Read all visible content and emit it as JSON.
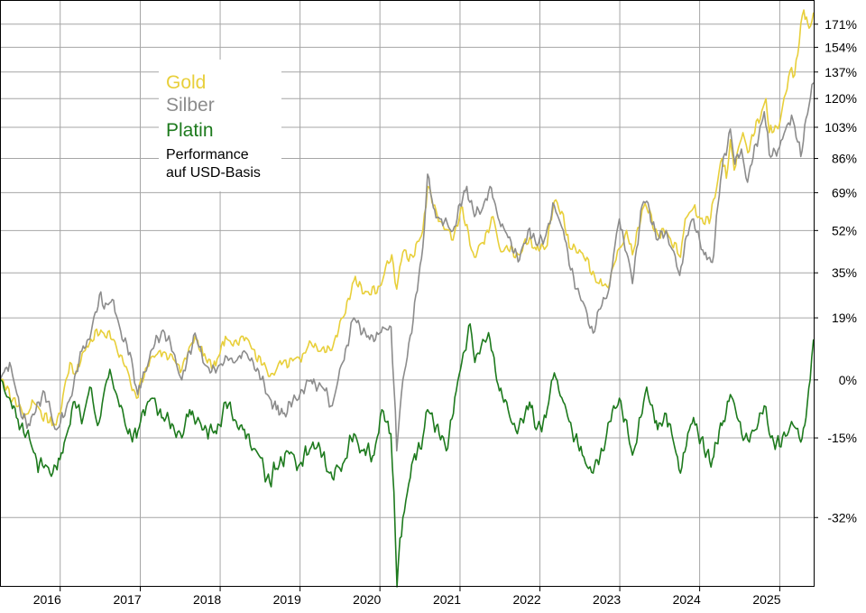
{
  "chart_data": {
    "type": "line",
    "title": "",
    "xlabel": "",
    "ylabel": "",
    "x_scale": "time",
    "y_scale": "log",
    "x_range": [
      "2015-04-01",
      "2025-06-05"
    ],
    "ylim": [
      -44,
      190
    ],
    "grid": true,
    "legend_position": "top-left",
    "x_ticks": [
      "2016",
      "2017",
      "2018",
      "2019",
      "2020",
      "2021",
      "2022",
      "2023",
      "2024",
      "2025"
    ],
    "y_ticks": [
      171,
      154,
      137,
      120,
      103,
      86,
      69,
      52,
      35,
      19,
      0,
      -15,
      -32
    ],
    "y_tick_labels": [
      "171%",
      "154%",
      "137%",
      "120%",
      "103%",
      "86%",
      "69%",
      "52%",
      "35%",
      "19%",
      "0%",
      "-15%",
      "-32%"
    ],
    "note": [
      "Performance",
      "auf USD-Basis"
    ],
    "series": [
      {
        "name": "Gold",
        "color": "#e8cf3a",
        "points": [
          [
            "2015-04-01",
            0
          ],
          [
            "2015-06-01",
            -5
          ],
          [
            "2015-07-20",
            -10
          ],
          [
            "2015-09-01",
            -6
          ],
          [
            "2015-11-25",
            -12
          ],
          [
            "2016-01-01",
            -9
          ],
          [
            "2016-02-15",
            5
          ],
          [
            "2016-03-15",
            2
          ],
          [
            "2016-05-01",
            10
          ],
          [
            "2016-07-05",
            15
          ],
          [
            "2016-09-01",
            12
          ],
          [
            "2016-10-15",
            5
          ],
          [
            "2016-12-15",
            -5
          ],
          [
            "2017-02-15",
            6
          ],
          [
            "2017-04-15",
            8
          ],
          [
            "2017-06-01",
            6
          ],
          [
            "2017-07-10",
            3
          ],
          [
            "2017-09-08",
            13
          ],
          [
            "2017-10-15",
            7
          ],
          [
            "2017-12-12",
            4
          ],
          [
            "2018-01-25",
            13
          ],
          [
            "2018-03-01",
            10
          ],
          [
            "2018-04-15",
            13
          ],
          [
            "2018-06-01",
            9
          ],
          [
            "2018-08-16",
            1
          ],
          [
            "2018-10-15",
            5
          ],
          [
            "2018-12-31",
            6
          ],
          [
            "2019-02-20",
            11
          ],
          [
            "2019-04-25",
            8
          ],
          [
            "2019-06-01",
            10
          ],
          [
            "2019-07-15",
            19
          ],
          [
            "2019-09-04",
            32
          ],
          [
            "2019-11-15",
            27
          ],
          [
            "2019-12-31",
            30
          ],
          [
            "2020-02-24",
            42
          ],
          [
            "2020-03-18",
            29
          ],
          [
            "2020-04-15",
            43
          ],
          [
            "2020-06-01",
            41
          ],
          [
            "2020-07-15",
            52
          ],
          [
            "2020-08-06",
            72
          ],
          [
            "2020-09-01",
            63
          ],
          [
            "2020-10-01",
            56
          ],
          [
            "2020-11-30",
            48
          ],
          [
            "2021-01-05",
            62
          ],
          [
            "2021-03-08",
            41
          ],
          [
            "2021-04-15",
            47
          ],
          [
            "2021-06-01",
            58
          ],
          [
            "2021-06-30",
            45
          ],
          [
            "2021-08-09",
            44
          ],
          [
            "2021-09-30",
            42
          ],
          [
            "2021-11-15",
            49
          ],
          [
            "2021-12-15",
            44
          ],
          [
            "2022-01-28",
            45
          ],
          [
            "2022-03-08",
            65
          ],
          [
            "2022-04-18",
            59
          ],
          [
            "2022-05-15",
            45
          ],
          [
            "2022-07-01",
            44
          ],
          [
            "2022-09-28",
            31
          ],
          [
            "2022-11-03",
            30
          ],
          [
            "2022-12-15",
            40
          ],
          [
            "2023-02-01",
            52
          ],
          [
            "2023-02-28",
            42
          ],
          [
            "2023-04-13",
            61
          ],
          [
            "2023-05-04",
            62
          ],
          [
            "2023-06-29",
            49
          ],
          [
            "2023-08-01",
            52
          ],
          [
            "2023-10-05",
            41
          ],
          [
            "2023-10-27",
            57
          ],
          [
            "2023-12-04",
            62
          ],
          [
            "2023-12-29",
            58
          ],
          [
            "2024-02-14",
            55
          ],
          [
            "2024-04-12",
            86
          ],
          [
            "2024-05-02",
            76
          ],
          [
            "2024-05-20",
            96
          ],
          [
            "2024-06-07",
            80
          ],
          [
            "2024-07-17",
            100
          ],
          [
            "2024-08-08",
            89
          ],
          [
            "2024-10-30",
            120
          ],
          [
            "2024-11-14",
            100
          ],
          [
            "2024-12-31",
            105
          ],
          [
            "2025-02-24",
            140
          ],
          [
            "2025-03-10",
            135
          ],
          [
            "2025-04-21",
            182
          ],
          [
            "2025-05-15",
            168
          ],
          [
            "2025-06-04",
            180
          ]
        ]
      },
      {
        "name": "Silber",
        "color": "#8c8c8c",
        "points": [
          [
            "2015-04-01",
            0
          ],
          [
            "2015-05-15",
            5
          ],
          [
            "2015-07-01",
            -8
          ],
          [
            "2015-08-15",
            -12
          ],
          [
            "2015-10-15",
            -3
          ],
          [
            "2015-12-15",
            -13
          ],
          [
            "2016-01-15",
            -10
          ],
          [
            "2016-03-01",
            -2
          ],
          [
            "2016-04-15",
            10
          ],
          [
            "2016-05-15",
            12
          ],
          [
            "2016-07-05",
            28
          ],
          [
            "2016-07-20",
            22
          ],
          [
            "2016-09-01",
            25
          ],
          [
            "2016-10-10",
            12
          ],
          [
            "2016-11-15",
            8
          ],
          [
            "2016-12-20",
            -4
          ],
          [
            "2017-02-24",
            9
          ],
          [
            "2017-04-15",
            15
          ],
          [
            "2017-06-01",
            8
          ],
          [
            "2017-07-10",
            0
          ],
          [
            "2017-08-01",
            5
          ],
          [
            "2017-09-08",
            14
          ],
          [
            "2017-10-15",
            5
          ],
          [
            "2017-12-12",
            2
          ],
          [
            "2018-01-25",
            7
          ],
          [
            "2018-03-01",
            5
          ],
          [
            "2018-04-13",
            8
          ],
          [
            "2018-06-01",
            5
          ],
          [
            "2018-08-16",
            -5
          ],
          [
            "2018-09-15",
            -8
          ],
          [
            "2018-10-15",
            -9
          ],
          [
            "2018-12-31",
            -4
          ],
          [
            "2019-02-20",
            0
          ],
          [
            "2019-04-25",
            -3
          ],
          [
            "2019-05-28",
            -7
          ],
          [
            "2019-07-15",
            5
          ],
          [
            "2019-09-04",
            19
          ],
          [
            "2019-11-15",
            12
          ],
          [
            "2019-12-31",
            14
          ],
          [
            "2020-02-21",
            16
          ],
          [
            "2020-03-18",
            -18
          ],
          [
            "2020-04-15",
            0
          ],
          [
            "2020-06-01",
            18
          ],
          [
            "2020-07-15",
            45
          ],
          [
            "2020-08-06",
            78
          ],
          [
            "2020-09-01",
            62
          ],
          [
            "2020-10-01",
            57
          ],
          [
            "2020-11-30",
            52
          ],
          [
            "2021-02-01",
            72
          ],
          [
            "2021-03-08",
            58
          ],
          [
            "2021-04-15",
            62
          ],
          [
            "2021-05-18",
            72
          ],
          [
            "2021-06-30",
            56
          ],
          [
            "2021-08-09",
            49
          ],
          [
            "2021-09-30",
            40
          ],
          [
            "2021-11-15",
            53
          ],
          [
            "2021-12-15",
            46
          ],
          [
            "2022-01-28",
            50
          ],
          [
            "2022-03-08",
            63
          ],
          [
            "2022-04-18",
            52
          ],
          [
            "2022-05-15",
            38
          ],
          [
            "2022-07-01",
            27
          ],
          [
            "2022-09-01",
            14
          ],
          [
            "2022-10-04",
            22
          ],
          [
            "2022-11-15",
            30
          ],
          [
            "2022-12-30",
            57
          ],
          [
            "2023-02-28",
            31
          ],
          [
            "2023-04-13",
            63
          ],
          [
            "2023-05-04",
            65
          ],
          [
            "2023-06-23",
            48
          ],
          [
            "2023-08-01",
            52
          ],
          [
            "2023-10-02",
            34
          ],
          [
            "2023-10-27",
            48
          ],
          [
            "2023-12-04",
            57
          ],
          [
            "2024-01-22",
            42
          ],
          [
            "2024-02-28",
            39
          ],
          [
            "2024-04-12",
            80
          ],
          [
            "2024-05-20",
            102
          ],
          [
            "2024-06-10",
            83
          ],
          [
            "2024-07-10",
            91
          ],
          [
            "2024-08-07",
            74
          ],
          [
            "2024-10-22",
            112
          ],
          [
            "2024-11-14",
            88
          ],
          [
            "2024-12-31",
            92
          ],
          [
            "2025-02-24",
            110
          ],
          [
            "2025-04-07",
            87
          ],
          [
            "2025-05-01",
            108
          ],
          [
            "2025-06-04",
            130
          ]
        ]
      },
      {
        "name": "Platin",
        "color": "#1d7a1d",
        "points": [
          [
            "2015-04-01",
            0
          ],
          [
            "2015-05-15",
            -5
          ],
          [
            "2015-06-15",
            -10
          ],
          [
            "2015-08-01",
            -14
          ],
          [
            "2015-09-15",
            -20
          ],
          [
            "2015-11-15",
            -23
          ],
          [
            "2015-12-31",
            -20
          ],
          [
            "2016-02-01",
            -14
          ],
          [
            "2016-03-01",
            -6
          ],
          [
            "2016-04-15",
            -10
          ],
          [
            "2016-05-15",
            -2
          ],
          [
            "2016-06-20",
            -12
          ],
          [
            "2016-08-15",
            3
          ],
          [
            "2016-09-15",
            -4
          ],
          [
            "2016-10-31",
            -13
          ],
          [
            "2016-12-15",
            -15
          ],
          [
            "2017-01-15",
            -8
          ],
          [
            "2017-02-24",
            -5
          ],
          [
            "2017-04-15",
            -10
          ],
          [
            "2017-06-01",
            -12
          ],
          [
            "2017-07-10",
            -15
          ],
          [
            "2017-08-15",
            -8
          ],
          [
            "2017-09-15",
            -11
          ],
          [
            "2017-10-31",
            -13
          ],
          [
            "2017-12-15",
            -14
          ],
          [
            "2018-01-26",
            -6
          ],
          [
            "2018-03-15",
            -11
          ],
          [
            "2018-04-15",
            -13
          ],
          [
            "2018-06-15",
            -18
          ],
          [
            "2018-08-16",
            -25
          ],
          [
            "2018-09-15",
            -22
          ],
          [
            "2018-10-31",
            -18
          ],
          [
            "2018-12-31",
            -21
          ],
          [
            "2019-02-01",
            -19
          ],
          [
            "2019-03-01",
            -16
          ],
          [
            "2019-04-15",
            -19
          ],
          [
            "2019-05-28",
            -24
          ],
          [
            "2019-07-15",
            -21
          ],
          [
            "2019-09-04",
            -14
          ],
          [
            "2019-10-15",
            -18
          ],
          [
            "2019-12-05",
            -19
          ],
          [
            "2020-01-10",
            -8
          ],
          [
            "2020-02-20",
            -14
          ],
          [
            "2020-03-19",
            -44
          ],
          [
            "2020-04-15",
            -32
          ],
          [
            "2020-06-01",
            -20
          ],
          [
            "2020-07-15",
            -15
          ],
          [
            "2020-08-06",
            -8
          ],
          [
            "2020-09-15",
            -12
          ],
          [
            "2020-10-30",
            -18
          ],
          [
            "2020-12-15",
            -3
          ],
          [
            "2021-02-16",
            17
          ],
          [
            "2021-03-10",
            5
          ],
          [
            "2021-04-15",
            12
          ],
          [
            "2021-05-18",
            12
          ],
          [
            "2021-06-30",
            -3
          ],
          [
            "2021-08-09",
            -8
          ],
          [
            "2021-09-20",
            -14
          ],
          [
            "2021-11-15",
            -6
          ],
          [
            "2021-12-15",
            -13
          ],
          [
            "2022-01-28",
            -10
          ],
          [
            "2022-03-08",
            2
          ],
          [
            "2022-04-18",
            -6
          ],
          [
            "2022-05-15",
            -11
          ],
          [
            "2022-07-14",
            -19
          ],
          [
            "2022-09-01",
            -23
          ],
          [
            "2022-10-15",
            -18
          ],
          [
            "2022-11-15",
            -11
          ],
          [
            "2022-12-30",
            -5
          ],
          [
            "2023-02-28",
            -19
          ],
          [
            "2023-04-13",
            -9
          ],
          [
            "2023-05-04",
            -2
          ],
          [
            "2023-06-23",
            -13
          ],
          [
            "2023-08-01",
            -9
          ],
          [
            "2023-10-05",
            -23
          ],
          [
            "2023-11-15",
            -13
          ],
          [
            "2023-12-04",
            -10
          ],
          [
            "2024-01-22",
            -18
          ],
          [
            "2024-02-28",
            -20
          ],
          [
            "2024-04-12",
            -12
          ],
          [
            "2024-05-20",
            -4
          ],
          [
            "2024-06-20",
            -10
          ],
          [
            "2024-07-25",
            -15
          ],
          [
            "2024-08-15",
            -16
          ],
          [
            "2024-10-22",
            -7
          ],
          [
            "2024-11-14",
            -14
          ],
          [
            "2024-12-31",
            -17
          ],
          [
            "2025-02-24",
            -11
          ],
          [
            "2025-04-07",
            -16
          ],
          [
            "2025-05-01",
            -10
          ],
          [
            "2025-05-20",
            0
          ],
          [
            "2025-06-04",
            12
          ]
        ]
      }
    ]
  }
}
